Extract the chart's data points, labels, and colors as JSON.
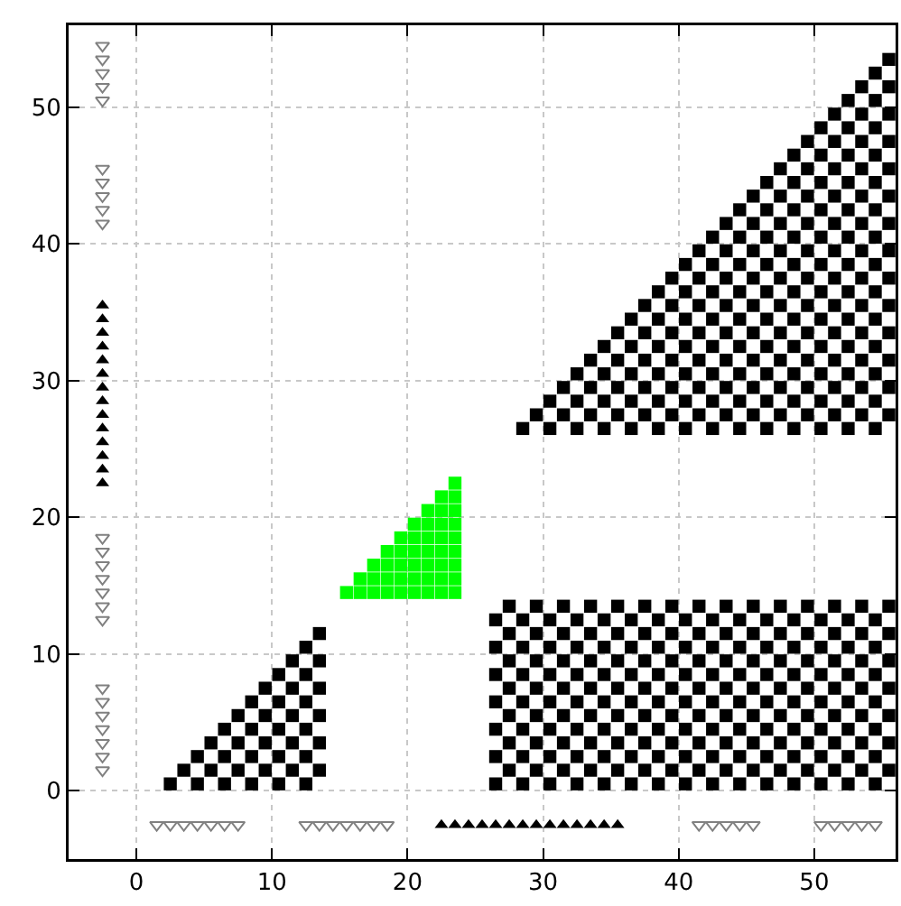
{
  "chart_data": {
    "type": "scatter",
    "xlim": [
      -5,
      56
    ],
    "ylim": [
      -5,
      56
    ],
    "xticks": [
      0,
      10,
      20,
      30,
      40,
      50
    ],
    "yticks": [
      0,
      10,
      20,
      30,
      40,
      50
    ],
    "grid": true,
    "series": [
      {
        "color": "#000000",
        "marker": "square",
        "x": [
          2.5,
          4.5,
          6.5,
          8.5,
          10.5,
          12.5,
          3.5,
          5.5,
          7.5,
          9.5,
          11.5,
          13.5,
          4.5,
          6.5,
          8.5,
          10.5,
          12.5,
          5.5,
          7.5,
          9.5,
          11.5,
          13.5,
          6.5,
          8.5,
          10.5,
          12.5,
          7.5,
          9.5,
          11.5,
          13.5,
          8.5,
          10.5,
          12.5,
          9.5,
          11.5,
          13.5,
          10.5,
          12.5,
          11.5,
          13.5,
          12.5,
          13.5
        ],
        "values": [
          0.5,
          0.5,
          0.5,
          0.5,
          0.5,
          0.5,
          1.5,
          1.5,
          1.5,
          1.5,
          1.5,
          1.5,
          2.5,
          2.5,
          2.5,
          2.5,
          2.5,
          3.5,
          3.5,
          3.5,
          3.5,
          3.5,
          4.5,
          4.5,
          4.5,
          4.5,
          5.5,
          5.5,
          5.5,
          5.5,
          6.5,
          6.5,
          6.5,
          7.5,
          7.5,
          7.5,
          8.5,
          8.5,
          9.5,
          9.5,
          10.5,
          11.5
        ]
      },
      {
        "color": "#00ff00",
        "marker": "square",
        "x": [
          15.5,
          16.5,
          16.5,
          17.5,
          17.5,
          17.5,
          18.5,
          18.5,
          18.5,
          18.5,
          19.5,
          19.5,
          19.5,
          19.5,
          19.5,
          20.5,
          20.5,
          20.5,
          20.5,
          20.5,
          20.5,
          21.5,
          21.5,
          21.5,
          21.5,
          21.5,
          21.5,
          21.5,
          22.5,
          22.5,
          22.5,
          22.5,
          22.5,
          22.5,
          22.5,
          22.5,
          23.5,
          23.5,
          23.5,
          23.5,
          23.5,
          23.5,
          23.5,
          23.5,
          23.5
        ],
        "values": [
          14.5,
          14.5,
          15.5,
          14.5,
          15.5,
          16.5,
          14.5,
          15.5,
          16.5,
          17.5,
          14.5,
          15.5,
          16.5,
          17.5,
          18.5,
          14.5,
          15.5,
          16.5,
          17.5,
          18.5,
          19.5,
          14.5,
          15.5,
          16.5,
          17.5,
          18.5,
          19.5,
          20.5,
          14.5,
          15.5,
          16.5,
          17.5,
          18.5,
          19.5,
          20.5,
          21.5,
          14.5,
          15.5,
          16.5,
          17.5,
          18.5,
          19.5,
          20.5,
          21.5,
          22.5
        ]
      },
      {
        "color": "#000000",
        "marker": "square",
        "x": [
          26.5,
          28.5,
          30.5,
          32.5,
          34.5,
          36.5,
          38.5,
          40.5,
          42.5,
          44.5,
          46.5,
          48.5,
          50.5,
          52.5,
          54.5,
          27.5,
          29.5,
          31.5,
          33.5,
          35.5,
          37.5,
          39.5,
          41.5,
          43.5,
          45.5,
          47.5,
          49.5,
          51.5,
          53.5,
          55.5,
          26.5,
          28.5,
          30.5,
          32.5,
          34.5,
          36.5,
          38.5,
          40.5,
          42.5,
          44.5,
          46.5,
          48.5,
          50.5,
          52.5,
          54.5,
          27.5,
          29.5,
          31.5,
          33.5,
          35.5,
          37.5,
          39.5,
          41.5,
          43.5,
          45.5,
          47.5,
          49.5,
          51.5,
          53.5,
          55.5,
          26.5,
          28.5,
          30.5,
          32.5,
          34.5,
          36.5,
          38.5,
          40.5,
          42.5,
          44.5,
          46.5,
          48.5,
          50.5,
          52.5,
          54.5,
          27.5,
          29.5,
          31.5,
          33.5,
          35.5,
          37.5,
          39.5,
          41.5,
          43.5,
          45.5,
          47.5,
          49.5,
          51.5,
          53.5,
          55.5,
          26.5,
          28.5,
          30.5,
          32.5,
          34.5,
          36.5,
          38.5,
          40.5,
          42.5,
          44.5,
          46.5,
          48.5,
          50.5,
          52.5,
          54.5,
          27.5,
          29.5,
          31.5,
          33.5,
          35.5,
          37.5,
          39.5,
          41.5,
          43.5,
          45.5,
          47.5,
          49.5,
          51.5,
          53.5,
          55.5,
          26.5,
          28.5,
          30.5,
          32.5,
          34.5,
          36.5,
          38.5,
          40.5,
          42.5,
          44.5,
          46.5,
          48.5,
          50.5,
          52.5,
          54.5,
          27.5,
          29.5,
          31.5,
          33.5,
          35.5,
          37.5,
          39.5,
          41.5,
          43.5,
          45.5,
          47.5,
          49.5,
          51.5,
          53.5,
          55.5,
          26.5,
          28.5,
          30.5,
          32.5,
          34.5,
          36.5,
          38.5,
          40.5,
          42.5,
          44.5,
          46.5,
          48.5,
          50.5,
          52.5,
          54.5,
          27.5,
          29.5,
          31.5,
          33.5,
          35.5,
          37.5,
          39.5,
          41.5,
          43.5,
          45.5,
          47.5,
          49.5,
          51.5,
          53.5,
          55.5,
          26.5,
          28.5,
          30.5,
          32.5,
          34.5,
          36.5,
          38.5,
          40.5,
          42.5,
          44.5,
          46.5,
          48.5,
          50.5,
          52.5,
          54.5,
          27.5,
          29.5,
          31.5,
          33.5,
          35.5,
          37.5,
          39.5,
          41.5,
          43.5,
          45.5,
          47.5,
          49.5,
          51.5,
          53.5,
          55.5
        ],
        "values": [
          0.5,
          0.5,
          0.5,
          0.5,
          0.5,
          0.5,
          0.5,
          0.5,
          0.5,
          0.5,
          0.5,
          0.5,
          0.5,
          0.5,
          0.5,
          1.5,
          1.5,
          1.5,
          1.5,
          1.5,
          1.5,
          1.5,
          1.5,
          1.5,
          1.5,
          1.5,
          1.5,
          1.5,
          1.5,
          1.5,
          2.5,
          2.5,
          2.5,
          2.5,
          2.5,
          2.5,
          2.5,
          2.5,
          2.5,
          2.5,
          2.5,
          2.5,
          2.5,
          2.5,
          2.5,
          3.5,
          3.5,
          3.5,
          3.5,
          3.5,
          3.5,
          3.5,
          3.5,
          3.5,
          3.5,
          3.5,
          3.5,
          3.5,
          3.5,
          3.5,
          4.5,
          4.5,
          4.5,
          4.5,
          4.5,
          4.5,
          4.5,
          4.5,
          4.5,
          4.5,
          4.5,
          4.5,
          4.5,
          4.5,
          4.5,
          5.5,
          5.5,
          5.5,
          5.5,
          5.5,
          5.5,
          5.5,
          5.5,
          5.5,
          5.5,
          5.5,
          5.5,
          5.5,
          5.5,
          5.5,
          6.5,
          6.5,
          6.5,
          6.5,
          6.5,
          6.5,
          6.5,
          6.5,
          6.5,
          6.5,
          6.5,
          6.5,
          6.5,
          6.5,
          6.5,
          7.5,
          7.5,
          7.5,
          7.5,
          7.5,
          7.5,
          7.5,
          7.5,
          7.5,
          7.5,
          7.5,
          7.5,
          7.5,
          7.5,
          7.5,
          8.5,
          8.5,
          8.5,
          8.5,
          8.5,
          8.5,
          8.5,
          8.5,
          8.5,
          8.5,
          8.5,
          8.5,
          8.5,
          8.5,
          8.5,
          9.5,
          9.5,
          9.5,
          9.5,
          9.5,
          9.5,
          9.5,
          9.5,
          9.5,
          9.5,
          9.5,
          9.5,
          9.5,
          9.5,
          9.5,
          10.5,
          10.5,
          10.5,
          10.5,
          10.5,
          10.5,
          10.5,
          10.5,
          10.5,
          10.5,
          10.5,
          10.5,
          10.5,
          10.5,
          10.5,
          11.5,
          11.5,
          11.5,
          11.5,
          11.5,
          11.5,
          11.5,
          11.5,
          11.5,
          11.5,
          11.5,
          11.5,
          11.5,
          11.5,
          11.5,
          12.5,
          12.5,
          12.5,
          12.5,
          12.5,
          12.5,
          12.5,
          12.5,
          12.5,
          12.5,
          12.5,
          12.5,
          12.5,
          12.5,
          12.5,
          13.5,
          13.5,
          13.5,
          13.5,
          13.5,
          13.5,
          13.5,
          13.5,
          13.5,
          13.5,
          13.5,
          13.5,
          13.5,
          13.5,
          13.5
        ]
      },
      {
        "color": "#000000",
        "marker": "square",
        "x": [
          28.5,
          30.5,
          32.5,
          34.5,
          36.5,
          38.5,
          40.5,
          42.5,
          44.5,
          46.5,
          48.5,
          50.5,
          52.5,
          54.5,
          29.5,
          31.5,
          33.5,
          35.5,
          37.5,
          39.5,
          41.5,
          43.5,
          45.5,
          47.5,
          49.5,
          51.5,
          53.5,
          55.5,
          30.5,
          32.5,
          34.5,
          36.5,
          38.5,
          40.5,
          42.5,
          44.5,
          46.5,
          48.5,
          50.5,
          52.5,
          54.5,
          31.5,
          33.5,
          35.5,
          37.5,
          39.5,
          41.5,
          43.5,
          45.5,
          47.5,
          49.5,
          51.5,
          53.5,
          55.5,
          32.5,
          34.5,
          36.5,
          38.5,
          40.5,
          42.5,
          44.5,
          46.5,
          48.5,
          50.5,
          52.5,
          54.5,
          33.5,
          35.5,
          37.5,
          39.5,
          41.5,
          43.5,
          45.5,
          47.5,
          49.5,
          51.5,
          53.5,
          55.5,
          34.5,
          36.5,
          38.5,
          40.5,
          42.5,
          44.5,
          46.5,
          48.5,
          50.5,
          52.5,
          54.5,
          35.5,
          37.5,
          39.5,
          41.5,
          43.5,
          45.5,
          47.5,
          49.5,
          51.5,
          53.5,
          55.5,
          36.5,
          38.5,
          40.5,
          42.5,
          44.5,
          46.5,
          48.5,
          50.5,
          52.5,
          54.5,
          37.5,
          39.5,
          41.5,
          43.5,
          45.5,
          47.5,
          49.5,
          51.5,
          53.5,
          55.5,
          38.5,
          40.5,
          42.5,
          44.5,
          46.5,
          48.5,
          50.5,
          52.5,
          54.5,
          39.5,
          41.5,
          43.5,
          45.5,
          47.5,
          49.5,
          51.5,
          53.5,
          55.5,
          40.5,
          42.5,
          44.5,
          46.5,
          48.5,
          50.5,
          52.5,
          54.5,
          41.5,
          43.5,
          45.5,
          47.5,
          49.5,
          51.5,
          53.5,
          55.5,
          42.5,
          44.5,
          46.5,
          48.5,
          50.5,
          52.5,
          54.5,
          43.5,
          45.5,
          47.5,
          49.5,
          51.5,
          53.5,
          55.5,
          44.5,
          46.5,
          48.5,
          50.5,
          52.5,
          54.5,
          45.5,
          47.5,
          49.5,
          51.5,
          53.5,
          55.5,
          46.5,
          48.5,
          50.5,
          52.5,
          54.5,
          47.5,
          49.5,
          51.5,
          53.5,
          55.5,
          48.5,
          50.5,
          52.5,
          54.5,
          49.5,
          51.5,
          53.5,
          55.5,
          50.5,
          52.5,
          54.5,
          51.5,
          53.5,
          55.5,
          52.5,
          54.5,
          53.5,
          55.5,
          54.5,
          55.5
        ],
        "values": [
          26.5,
          26.5,
          26.5,
          26.5,
          26.5,
          26.5,
          26.5,
          26.5,
          26.5,
          26.5,
          26.5,
          26.5,
          26.5,
          26.5,
          27.5,
          27.5,
          27.5,
          27.5,
          27.5,
          27.5,
          27.5,
          27.5,
          27.5,
          27.5,
          27.5,
          27.5,
          27.5,
          27.5,
          28.5,
          28.5,
          28.5,
          28.5,
          28.5,
          28.5,
          28.5,
          28.5,
          28.5,
          28.5,
          28.5,
          28.5,
          28.5,
          29.5,
          29.5,
          29.5,
          29.5,
          29.5,
          29.5,
          29.5,
          29.5,
          29.5,
          29.5,
          29.5,
          29.5,
          29.5,
          30.5,
          30.5,
          30.5,
          30.5,
          30.5,
          30.5,
          30.5,
          30.5,
          30.5,
          30.5,
          30.5,
          30.5,
          31.5,
          31.5,
          31.5,
          31.5,
          31.5,
          31.5,
          31.5,
          31.5,
          31.5,
          31.5,
          31.5,
          31.5,
          32.5,
          32.5,
          32.5,
          32.5,
          32.5,
          32.5,
          32.5,
          32.5,
          32.5,
          32.5,
          32.5,
          33.5,
          33.5,
          33.5,
          33.5,
          33.5,
          33.5,
          33.5,
          33.5,
          33.5,
          33.5,
          33.5,
          34.5,
          34.5,
          34.5,
          34.5,
          34.5,
          34.5,
          34.5,
          34.5,
          34.5,
          34.5,
          35.5,
          35.5,
          35.5,
          35.5,
          35.5,
          35.5,
          35.5,
          35.5,
          35.5,
          35.5,
          36.5,
          36.5,
          36.5,
          36.5,
          36.5,
          36.5,
          36.5,
          36.5,
          36.5,
          37.5,
          37.5,
          37.5,
          37.5,
          37.5,
          37.5,
          37.5,
          37.5,
          37.5,
          38.5,
          38.5,
          38.5,
          38.5,
          38.5,
          38.5,
          38.5,
          38.5,
          39.5,
          39.5,
          39.5,
          39.5,
          39.5,
          39.5,
          39.5,
          39.5,
          40.5,
          40.5,
          40.5,
          40.5,
          40.5,
          40.5,
          40.5,
          41.5,
          41.5,
          41.5,
          41.5,
          41.5,
          41.5,
          41.5,
          42.5,
          42.5,
          42.5,
          42.5,
          42.5,
          42.5,
          43.5,
          43.5,
          43.5,
          43.5,
          43.5,
          43.5,
          44.5,
          44.5,
          44.5,
          44.5,
          44.5,
          45.5,
          45.5,
          45.5,
          45.5,
          45.5,
          46.5,
          46.5,
          46.5,
          46.5,
          47.5,
          47.5,
          47.5,
          47.5,
          48.5,
          48.5,
          48.5,
          49.5,
          49.5,
          49.5,
          50.5,
          50.5,
          51.5,
          51.5,
          52.5,
          53.5
        ]
      },
      {
        "color": "#808080",
        "marker": "triangle-down",
        "x": [
          -2.5,
          -2.5,
          -2.5,
          -2.5,
          -2.5,
          -2.5,
          -2.5,
          -2.5,
          -2.5,
          -2.5,
          -2.5,
          -2.5,
          -2.5,
          -2.5,
          -2.5,
          -2.5,
          -2.5,
          -2.5,
          -2.5,
          -2.5,
          -2.5,
          -2.5,
          -2.5,
          -2.5,
          1.5,
          2.5,
          3.5,
          4.5,
          5.5,
          6.5,
          7.5,
          12.5,
          13.5,
          14.5,
          15.5,
          16.5,
          17.5,
          18.5,
          41.5,
          42.5,
          43.5,
          44.5,
          45.5,
          50.5,
          51.5,
          52.5,
          53.5,
          54.5
        ],
        "values": [
          54.5,
          53.5,
          52.5,
          51.5,
          50.5,
          45.5,
          44.5,
          43.5,
          42.5,
          41.5,
          18.5,
          17.5,
          16.5,
          15.5,
          14.5,
          13.5,
          12.5,
          7.5,
          6.5,
          5.5,
          4.5,
          3.5,
          2.5,
          1.5,
          -2.5,
          -2.5,
          -2.5,
          -2.5,
          -2.5,
          -2.5,
          -2.5,
          -2.5,
          -2.5,
          -2.5,
          -2.5,
          -2.5,
          -2.5,
          -2.5,
          -2.5,
          -2.5,
          -2.5,
          -2.5,
          -2.5,
          -2.5,
          -2.5,
          -2.5,
          -2.5,
          -2.5
        ]
      },
      {
        "color": "#000000",
        "marker": "triangle",
        "x": [
          -2.5,
          -2.5,
          -2.5,
          -2.5,
          -2.5,
          -2.5,
          -2.5,
          -2.5,
          -2.5,
          -2.5,
          -2.5,
          -2.5,
          -2.5,
          -2.5,
          22.5,
          23.5,
          24.5,
          25.5,
          26.5,
          27.5,
          28.5,
          29.5,
          30.5,
          31.5,
          32.5,
          33.5,
          34.5,
          35.5
        ],
        "values": [
          35.5,
          34.5,
          33.5,
          32.5,
          31.5,
          30.5,
          29.5,
          28.5,
          27.5,
          26.5,
          25.5,
          24.5,
          23.5,
          22.5,
          -2.5,
          -2.5,
          -2.5,
          -2.5,
          -2.5,
          -2.5,
          -2.5,
          -2.5,
          -2.5,
          -2.5,
          -2.5,
          -2.5,
          -2.5,
          -2.5
        ]
      }
    ]
  }
}
